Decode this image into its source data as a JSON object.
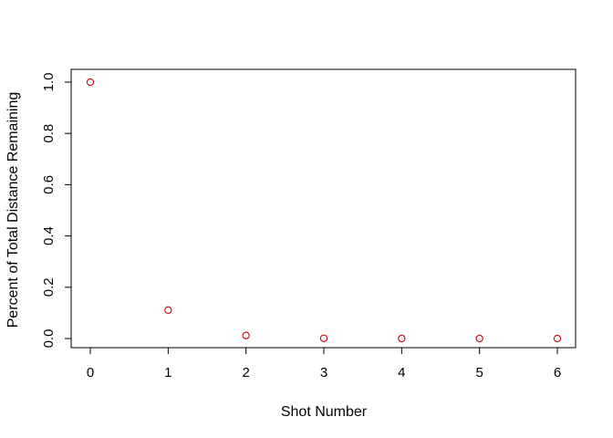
{
  "chart_data": {
    "type": "scatter",
    "title": "",
    "xlabel": "Shot Number",
    "ylabel": "Percent of Total Distance Remaining",
    "xlim": [
      0,
      6
    ],
    "ylim": [
      0,
      1
    ],
    "x_ticks": [
      0,
      1,
      2,
      3,
      4,
      5,
      6
    ],
    "y_ticks": [
      0.0,
      0.2,
      0.4,
      0.6,
      0.8,
      1.0
    ],
    "x_tick_labels": [
      "0",
      "1",
      "2",
      "3",
      "4",
      "5",
      "6"
    ],
    "y_tick_labels": [
      "0.0",
      "0.2",
      "0.4",
      "0.6",
      "0.8",
      "1.0"
    ],
    "grid": false,
    "marker": "open-circle",
    "point_color": "#cc0000",
    "series": [
      {
        "x": [
          0,
          1,
          2,
          3,
          4,
          5,
          6
        ],
        "y": [
          1.0,
          0.111,
          0.012,
          0.001,
          0.0001,
          0.0,
          0.0
        ]
      }
    ]
  }
}
